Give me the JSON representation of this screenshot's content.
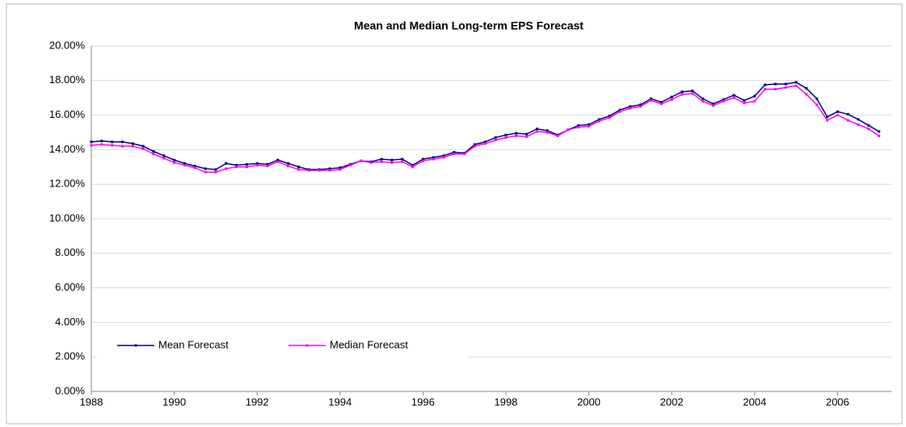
{
  "chart_data": {
    "type": "line",
    "title": "Mean and Median Long-term EPS Forecast",
    "x": [
      1988,
      1988.25,
      1988.5,
      1988.75,
      1989,
      1989.25,
      1989.5,
      1989.75,
      1990,
      1990.25,
      1990.5,
      1990.75,
      1991,
      1991.25,
      1991.5,
      1991.75,
      1992,
      1992.25,
      1992.5,
      1992.75,
      1993,
      1993.25,
      1993.5,
      1993.75,
      1994,
      1994.25,
      1994.5,
      1994.75,
      1995,
      1995.25,
      1995.5,
      1995.75,
      1996,
      1996.25,
      1996.5,
      1996.75,
      1997,
      1997.25,
      1997.5,
      1997.75,
      1998,
      1998.25,
      1998.5,
      1998.75,
      1999,
      1999.25,
      1999.5,
      1999.75,
      2000,
      2000.25,
      2000.5,
      2000.75,
      2001,
      2001.25,
      2001.5,
      2001.75,
      2002,
      2002.25,
      2002.5,
      2002.75,
      2003,
      2003.25,
      2003.5,
      2003.75,
      2004,
      2004.25,
      2004.5,
      2004.75,
      2005,
      2005.25,
      2005.5,
      2005.75,
      2006,
      2006.25,
      2006.5,
      2006.75,
      2007
    ],
    "series": [
      {
        "name": "Mean Forecast",
        "color": "#000080",
        "values": [
          14.45,
          14.5,
          14.45,
          14.45,
          14.35,
          14.2,
          13.9,
          13.65,
          13.4,
          13.2,
          13.05,
          12.9,
          12.85,
          13.2,
          13.1,
          13.15,
          13.2,
          13.15,
          13.4,
          13.2,
          13.0,
          12.85,
          12.85,
          12.9,
          12.95,
          13.15,
          13.35,
          13.3,
          13.45,
          13.4,
          13.45,
          13.1,
          13.45,
          13.55,
          13.65,
          13.85,
          13.8,
          14.3,
          14.45,
          14.7,
          14.85,
          14.95,
          14.9,
          15.2,
          15.1,
          14.85,
          15.15,
          15.4,
          15.45,
          15.75,
          15.95,
          16.3,
          16.5,
          16.6,
          16.95,
          16.75,
          17.05,
          17.35,
          17.4,
          16.95,
          16.65,
          16.9,
          17.15,
          16.85,
          17.1,
          17.75,
          17.8,
          17.8,
          17.9,
          17.55,
          16.95,
          15.9,
          16.2,
          16.05,
          15.75,
          15.4,
          15.05
        ]
      },
      {
        "name": "Median Forecast",
        "color": "#ff00ff",
        "values": [
          14.25,
          14.3,
          14.25,
          14.2,
          14.2,
          14.05,
          13.75,
          13.5,
          13.25,
          13.1,
          12.95,
          12.7,
          12.7,
          12.9,
          13.0,
          13.0,
          13.1,
          13.05,
          13.3,
          13.05,
          12.85,
          12.8,
          12.8,
          12.8,
          12.85,
          13.1,
          13.35,
          13.25,
          13.3,
          13.25,
          13.3,
          13.0,
          13.35,
          13.45,
          13.55,
          13.75,
          13.75,
          14.2,
          14.35,
          14.55,
          14.7,
          14.8,
          14.75,
          15.05,
          15.0,
          14.8,
          15.15,
          15.3,
          15.35,
          15.65,
          15.85,
          16.2,
          16.4,
          16.5,
          16.85,
          16.65,
          16.9,
          17.2,
          17.25,
          16.8,
          16.55,
          16.8,
          17.0,
          16.7,
          16.8,
          17.5,
          17.5,
          17.6,
          17.7,
          17.2,
          16.6,
          15.7,
          16.0,
          15.7,
          15.45,
          15.2,
          14.8
        ]
      }
    ],
    "xlim": [
      1988,
      2007.3
    ],
    "xticks": [
      1988,
      1990,
      1992,
      1994,
      1996,
      1998,
      2000,
      2002,
      2004,
      2006
    ],
    "ylim": [
      0,
      20
    ],
    "yticks": [
      {
        "value": 0,
        "label": "0.00%"
      },
      {
        "value": 2,
        "label": "2.00%"
      },
      {
        "value": 4,
        "label": "4.00%"
      },
      {
        "value": 6,
        "label": "6.00%"
      },
      {
        "value": 8,
        "label": "8.00%"
      },
      {
        "value": 10,
        "label": "10.00%"
      },
      {
        "value": 12,
        "label": "12.00%"
      },
      {
        "value": 14,
        "label": "14.00%"
      },
      {
        "value": 16,
        "label": "16.00%"
      },
      {
        "value": 18,
        "label": "18.00%"
      },
      {
        "value": 20,
        "label": "20.00%"
      }
    ],
    "grid": true,
    "legend": "lower left"
  }
}
